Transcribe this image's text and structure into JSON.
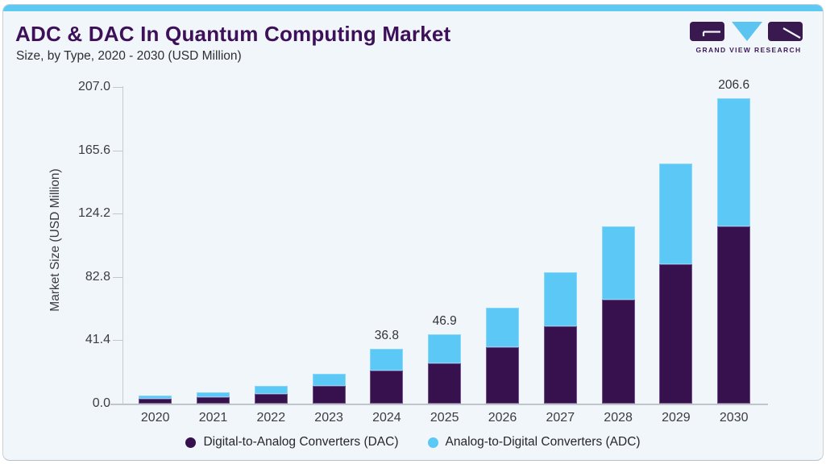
{
  "header": {
    "title": "ADC & DAC In Quantum Computing Market",
    "subtitle": "Size, by Type, 2020 - 2030 (USD Million)"
  },
  "brand": {
    "name": "GRAND VIEW RESEARCH",
    "logo_icon": "gvr-logo-icon"
  },
  "colors": {
    "accent_bar": "#5EC9F3",
    "dac": "#37104E",
    "adc": "#5BC8F5",
    "title": "#3D1059",
    "card_bg": "#F1F6FA",
    "axis_line": "#C6CBD1"
  },
  "chart_data": {
    "type": "bar",
    "stacked": true,
    "title": "ADC & DAC In Quantum Computing Market Size, by Type, 2020 - 2030 (USD Million)",
    "ylabel": "Market Size (USD Million)",
    "xlabel": "",
    "categories": [
      "2020",
      "2021",
      "2022",
      "2023",
      "2024",
      "2025",
      "2026",
      "2027",
      "2028",
      "2029",
      "2030"
    ],
    "series": [
      {
        "name": "Digital-to-Analog Converters (DAC)",
        "color": "#37104E",
        "values": [
          3.1,
          4.5,
          6.7,
          12.1,
          22.1,
          27.5,
          38.3,
          52.1,
          70.0,
          94.4,
          119.9
        ]
      },
      {
        "name": "Analog-to-Digital Converters (ADC)",
        "color": "#5BC8F5",
        "values": [
          2.3,
          3.1,
          5.1,
          7.9,
          14.7,
          19.4,
          26.7,
          36.5,
          49.8,
          67.7,
          86.7
        ]
      }
    ],
    "totals": [
      5.4,
      7.6,
      11.8,
      20.0,
      36.8,
      46.9,
      65.0,
      88.6,
      119.8,
      162.1,
      206.6
    ],
    "total_labels": [
      "",
      "",
      "",
      "",
      "36.8",
      "46.9",
      "",
      "",
      "",
      "",
      "206.6"
    ],
    "yticks": [
      "0.0",
      "41.4",
      "82.8",
      "124.2",
      "165.6",
      "207.0"
    ],
    "ylim": [
      0,
      207.0
    ],
    "grid": false,
    "legend_position": "bottom"
  }
}
